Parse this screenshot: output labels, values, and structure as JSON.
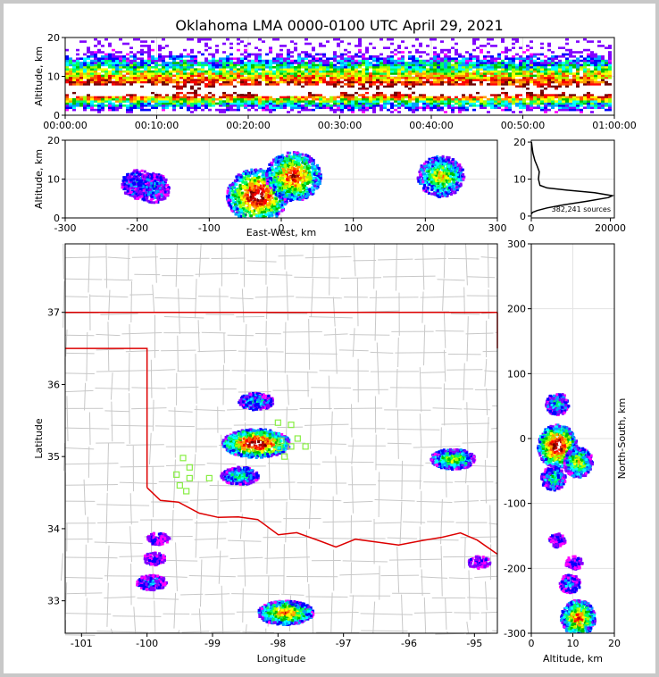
{
  "title": "Oklahoma LMA 0000-0100 UTC April 29, 2021",
  "colors": {
    "scale": [
      "#ff00ff",
      "#8000ff",
      "#0000ff",
      "#00a0ff",
      "#00ffff",
      "#00ff60",
      "#00c000",
      "#a0ff00",
      "#ffff00",
      "#ffa000",
      "#ff5000",
      "#ff0000",
      "#c00000",
      "#700000",
      "#ffffff"
    ],
    "state_border": "#dd0000",
    "county_lines": "#c8c8c8",
    "stations": "#88ee44"
  },
  "chart_data": [
    {
      "id": "time_height",
      "type": "heatmap",
      "ylabel": "Altitude, km",
      "xlim": [
        "00:00:00",
        "01:00:00"
      ],
      "ylim": [
        0,
        20
      ],
      "x_ticks": [
        "00:00:00",
        "00:10:00",
        "00:20:00",
        "00:30:00",
        "00:40:00",
        "00:50:00",
        "01:00:00"
      ],
      "y_ticks": [
        0,
        10,
        20
      ],
      "description": "Source density by time and altitude; dense band near 6 km",
      "peak_altitude_km": 6
    },
    {
      "id": "ew_height",
      "type": "heatmap",
      "xlabel": "East-West, km",
      "ylabel": "Altitude, km",
      "xlim": [
        -300,
        300
      ],
      "ylim": [
        0,
        20
      ],
      "x_ticks": [
        -300,
        -200,
        -100,
        0,
        100,
        200,
        300
      ],
      "y_ticks": [
        0,
        10,
        20
      ],
      "clusters": [
        {
          "x": -200,
          "alt": 9,
          "intensity": 0.25
        },
        {
          "x": -180,
          "alt": 8,
          "intensity": 0.25
        },
        {
          "x": -35,
          "alt": 6,
          "intensity": 1.0
        },
        {
          "x": 15,
          "alt": 11,
          "intensity": 0.85
        },
        {
          "x": 220,
          "alt": 11,
          "intensity": 0.6
        }
      ]
    },
    {
      "id": "altitude_histogram",
      "type": "line",
      "xlim": [
        0,
        21000
      ],
      "ylim": [
        0,
        20
      ],
      "x_ticks": [
        0,
        20000
      ],
      "y_ticks": [
        0,
        10,
        20
      ],
      "annotation": "382,241 sources",
      "points": [
        [
          0,
          0.5
        ],
        [
          300,
          1
        ],
        [
          1500,
          1.5
        ],
        [
          4000,
          2.2
        ],
        [
          8000,
          3
        ],
        [
          14000,
          4
        ],
        [
          19500,
          5
        ],
        [
          20500,
          5.5
        ],
        [
          16000,
          6.3
        ],
        [
          9000,
          7
        ],
        [
          4000,
          7.6
        ],
        [
          2200,
          8.3
        ],
        [
          1800,
          10
        ],
        [
          2000,
          12
        ],
        [
          1500,
          13.5
        ],
        [
          900,
          15
        ],
        [
          400,
          17
        ],
        [
          150,
          19
        ],
        [
          50,
          20
        ]
      ]
    },
    {
      "id": "plan_view",
      "type": "heatmap",
      "xlabel": "Longitude",
      "ylabel": "Latitude",
      "xlim": [
        -101.25,
        -94.65
      ],
      "ylim": [
        32.55,
        37.95
      ],
      "x_ticks": [
        -101,
        -100,
        -99,
        -98,
        -97,
        -96,
        -95
      ],
      "y_ticks": [
        33,
        34,
        35,
        36,
        37
      ],
      "clusters": [
        {
          "lon": -98.35,
          "lat": 35.2,
          "intensity": 1.0
        },
        {
          "lon": -98.6,
          "lat": 34.75,
          "intensity": 0.4
        },
        {
          "lon": -98.35,
          "lat": 35.78,
          "intensity": 0.35
        },
        {
          "lon": -95.35,
          "lat": 34.98,
          "intensity": 0.55
        },
        {
          "lon": -97.9,
          "lat": 32.85,
          "intensity": 0.75
        },
        {
          "lon": -99.95,
          "lat": 33.27,
          "intensity": 0.25
        },
        {
          "lon": -99.9,
          "lat": 33.6,
          "intensity": 0.1
        },
        {
          "lon": -99.85,
          "lat": 33.88,
          "intensity": 0.1
        },
        {
          "lon": -94.95,
          "lat": 33.55,
          "intensity": 0.1
        }
      ],
      "stations": [
        [
          -99.45,
          34.98
        ],
        [
          -99.35,
          34.85
        ],
        [
          -99.55,
          34.75
        ],
        [
          -99.35,
          34.7
        ],
        [
          -99.5,
          34.6
        ],
        [
          -99.4,
          34.52
        ],
        [
          -99.05,
          34.7
        ],
        [
          -98.0,
          35.47
        ],
        [
          -97.8,
          35.44
        ],
        [
          -97.7,
          35.25
        ],
        [
          -97.95,
          35.22
        ],
        [
          -97.8,
          35.14
        ],
        [
          -97.58,
          35.14
        ],
        [
          -97.98,
          35.12
        ],
        [
          -97.9,
          35.0
        ]
      ]
    },
    {
      "id": "alt_ns",
      "type": "heatmap",
      "xlabel": "Altitude, km",
      "ylabel": "North-South, km",
      "xlim": [
        0,
        20
      ],
      "ylim": [
        -300,
        300
      ],
      "x_ticks": [
        0,
        10,
        20
      ],
      "y_ticks": [
        -300,
        -200,
        -100,
        0,
        100,
        200,
        300
      ],
      "clusters": [
        {
          "alt": 6,
          "ns": -10,
          "intensity": 1.0
        },
        {
          "alt": 11,
          "ns": -35,
          "intensity": 0.6
        },
        {
          "alt": 5,
          "ns": -60,
          "intensity": 0.4
        },
        {
          "alt": 6,
          "ns": 55,
          "intensity": 0.35
        },
        {
          "alt": 11,
          "ns": -275,
          "intensity": 0.8
        },
        {
          "alt": 9,
          "ns": -222,
          "intensity": 0.25
        },
        {
          "alt": 6,
          "ns": -155,
          "intensity": 0.1
        },
        {
          "alt": 10,
          "ns": -190,
          "intensity": 0.1
        }
      ]
    }
  ]
}
